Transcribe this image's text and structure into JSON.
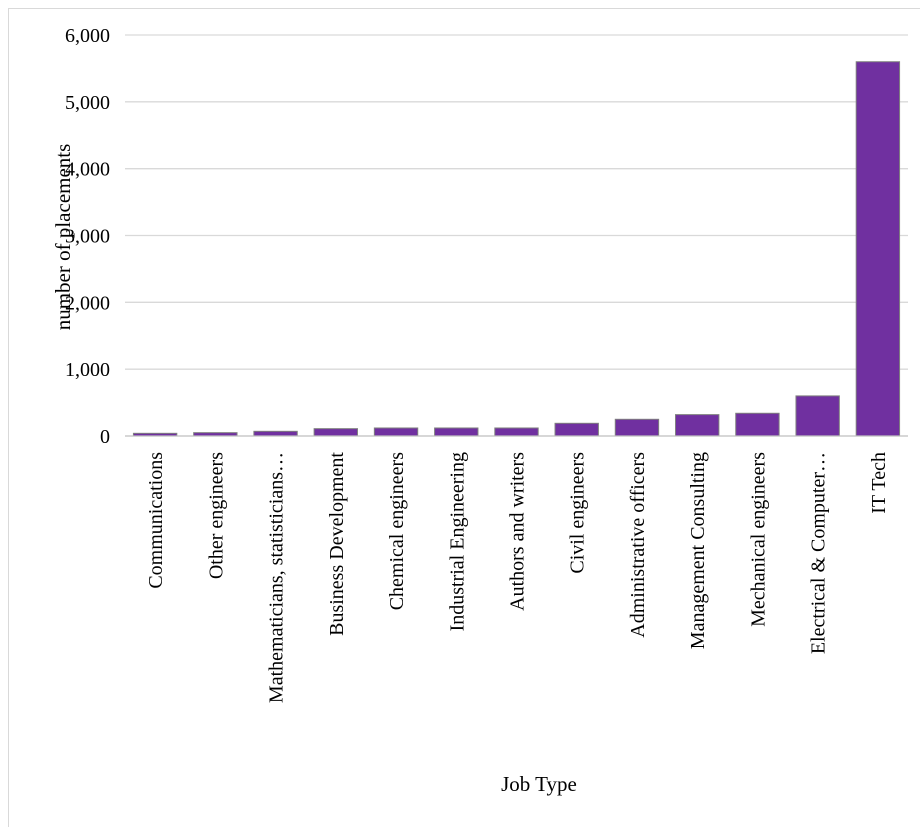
{
  "chart_data": {
    "type": "bar",
    "title": "",
    "xlabel": "Job Type",
    "ylabel": "number of placements",
    "categories": [
      "Communications",
      "Other engineers",
      "Mathematicians, statisticians…",
      "Business Development",
      "Chemical engineers",
      "Industrial Engineering",
      "Authors and writers",
      "Civil engineers",
      "Administrative officers",
      "Management Consulting",
      "Mechanical engineers",
      "Electrical & Computer…",
      "IT Tech"
    ],
    "values": [
      40,
      50,
      70,
      110,
      120,
      120,
      120,
      190,
      250,
      320,
      340,
      600,
      5600
    ],
    "ylim": [
      0,
      6000
    ],
    "yticks": [
      0,
      1000,
      2000,
      3000,
      4000,
      5000,
      6000
    ],
    "ytick_labels": [
      "0",
      "1,000",
      "2,000",
      "3,000",
      "4,000",
      "5,000",
      "6,000"
    ],
    "grid": true,
    "legend": "none",
    "bar_color": "#7030a0",
    "bar_edge_color": "#7f7f7f",
    "grid_color": "#d9d9d9"
  }
}
